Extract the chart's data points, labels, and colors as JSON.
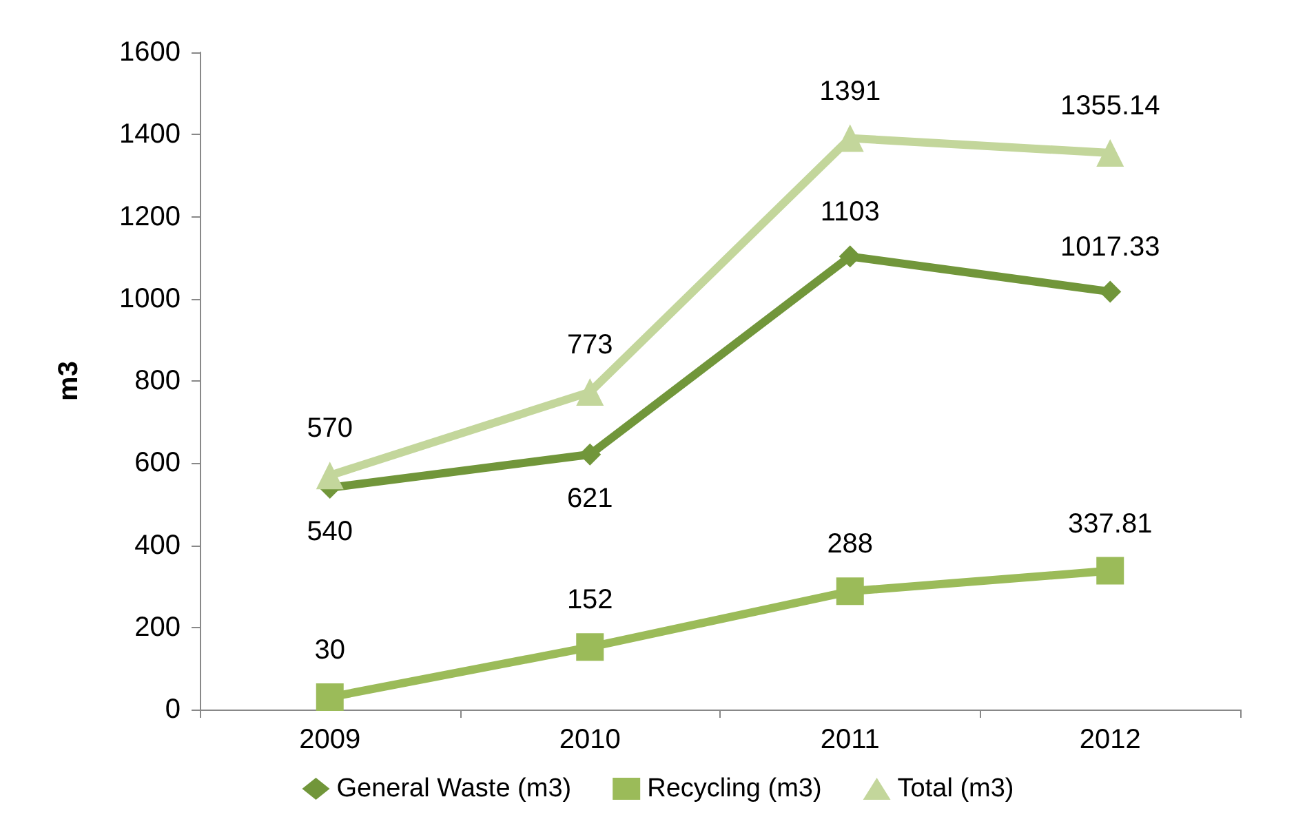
{
  "chart_data": {
    "type": "line",
    "ylabel": "m3",
    "categories": [
      "2009",
      "2010",
      "2011",
      "2012"
    ],
    "series": [
      {
        "name": "General Waste (m3)",
        "color": "#71963a",
        "marker": "diamond",
        "values": [
          540,
          621,
          1103,
          1017.33
        ]
      },
      {
        "name": "Recycling (m3)",
        "color": "#9bbb59",
        "marker": "square",
        "values": [
          30,
          152,
          288,
          337.81
        ]
      },
      {
        "name": "Total (m3)",
        "color": "#c3d69b",
        "marker": "triangle",
        "values": [
          570,
          773,
          1391,
          1355.14
        ]
      }
    ],
    "ylim": [
      0,
      1600
    ],
    "yticks": [
      0,
      200,
      400,
      600,
      800,
      1000,
      1200,
      1400,
      1600
    ],
    "grid": false,
    "legend": "bottom",
    "data_labels": true
  }
}
